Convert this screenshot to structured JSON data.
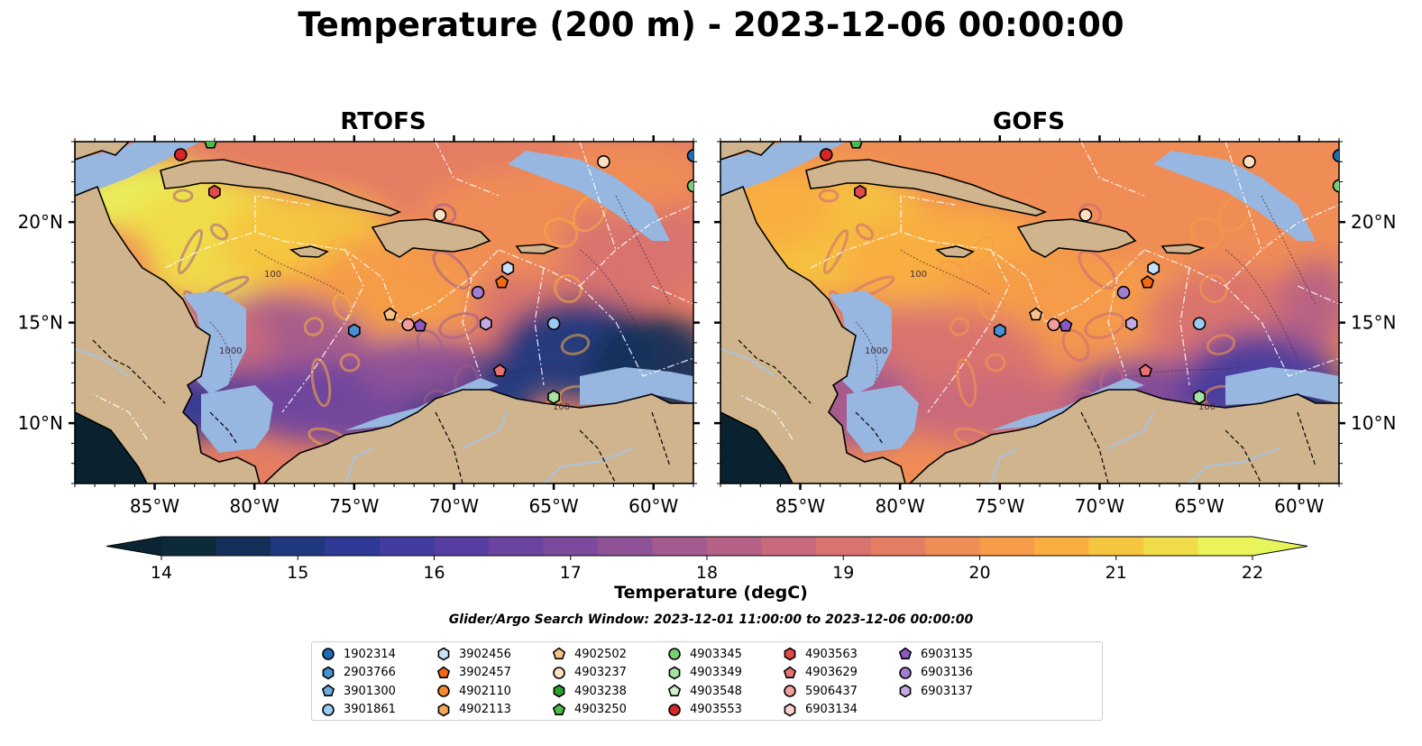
{
  "title": "Temperature (200 m) - 2023-12-06 00:00:00",
  "panels": [
    {
      "title": "RTOFS",
      "variant": "rtofs"
    },
    {
      "title": "GOFS",
      "variant": "gofs"
    }
  ],
  "map_axes": {
    "lon_ticks": [
      "85°W",
      "80°W",
      "75°W",
      "70°W",
      "65°W",
      "60°W"
    ],
    "lon_values": [
      -85,
      -80,
      -75,
      -70,
      -65,
      -60
    ],
    "lat_ticks": [
      "20°N",
      "15°N",
      "10°N"
    ],
    "lat_values": [
      20,
      15,
      10
    ],
    "lon_range": [
      -89,
      -58
    ],
    "lat_range": [
      7,
      24
    ]
  },
  "colorbar": {
    "label": "Temperature (degC)",
    "ticks": [
      "14",
      "15",
      "16",
      "17",
      "18",
      "19",
      "20",
      "21",
      "22"
    ],
    "range": [
      14,
      22
    ],
    "colors": [
      "#0d2a3b",
      "#14305a",
      "#1f3880",
      "#2f3a96",
      "#433ba0",
      "#573ea2",
      "#6b449f",
      "#7c4a9c",
      "#8f5297",
      "#a35a8f",
      "#b66186",
      "#c8697c",
      "#d87370",
      "#e57d63",
      "#f08c55",
      "#f69c48",
      "#f9ae40",
      "#f6c53f",
      "#f0dc49",
      "#eaf35a"
    ],
    "under_color": "#0b2433",
    "over_color": "#e6f55a"
  },
  "search_window": "Glider/Argo Search Window: 2023-12-01 11:00:00 to 2023-12-06 00:00:00",
  "legend": [
    {
      "id": "1902314",
      "marker": "circle",
      "color": "#1f6bb5"
    },
    {
      "id": "2903766",
      "marker": "hexagon",
      "color": "#4a8fd0"
    },
    {
      "id": "3901300",
      "marker": "pentagon",
      "color": "#6aaee0"
    },
    {
      "id": "3901861",
      "marker": "circle",
      "color": "#9ccaf0"
    },
    {
      "id": "3902456",
      "marker": "hexagon",
      "color": "#c6e2fa"
    },
    {
      "id": "3902457",
      "marker": "pentagon",
      "color": "#f26a12"
    },
    {
      "id": "4902110",
      "marker": "circle",
      "color": "#f5892c"
    },
    {
      "id": "4902113",
      "marker": "hexagon",
      "color": "#f9a557"
    },
    {
      "id": "4902502",
      "marker": "pentagon",
      "color": "#fbc38c"
    },
    {
      "id": "4903237",
      "marker": "circle",
      "color": "#fde0c2"
    },
    {
      "id": "4903238",
      "marker": "hexagon",
      "color": "#2aa02a"
    },
    {
      "id": "4903250",
      "marker": "pentagon",
      "color": "#4cbb4c"
    },
    {
      "id": "4903345",
      "marker": "circle",
      "color": "#77cf73"
    },
    {
      "id": "4903349",
      "marker": "hexagon",
      "color": "#a6e3a0"
    },
    {
      "id": "4903548",
      "marker": "pentagon",
      "color": "#d0f2cb"
    },
    {
      "id": "4903553",
      "marker": "circle",
      "color": "#d62728"
    },
    {
      "id": "4903563",
      "marker": "hexagon",
      "color": "#e2494a"
    },
    {
      "id": "4903629",
      "marker": "pentagon",
      "color": "#ea7072"
    },
    {
      "id": "5906437",
      "marker": "circle",
      "color": "#f29c9c"
    },
    {
      "id": "6903134",
      "marker": "hexagon",
      "color": "#fad0cf"
    },
    {
      "id": "6903135",
      "marker": "pentagon",
      "color": "#8a57c3"
    },
    {
      "id": "6903136",
      "marker": "circle",
      "color": "#a27ed3"
    },
    {
      "id": "6903137",
      "marker": "hexagon",
      "color": "#c3a9e6"
    }
  ],
  "floats": [
    {
      "lon": -83.7,
      "lat": 23.35,
      "marker": "circle",
      "color": "#d62728"
    },
    {
      "lon": -82.2,
      "lat": 23.95,
      "marker": "pentagon",
      "color": "#4cbb4c"
    },
    {
      "lon": -62.5,
      "lat": 23.0,
      "marker": "circle",
      "color": "#fde0c2"
    },
    {
      "lon": -58.0,
      "lat": 23.3,
      "marker": "circle",
      "color": "#1f6bb5"
    },
    {
      "lon": -58.0,
      "lat": 21.8,
      "marker": "circle",
      "color": "#77cf73"
    },
    {
      "lon": -82.0,
      "lat": 21.5,
      "marker": "hexagon",
      "color": "#e2494a"
    },
    {
      "lon": -70.7,
      "lat": 20.35,
      "marker": "circle",
      "color": "#fde0c2"
    },
    {
      "lon": -67.3,
      "lat": 17.7,
      "marker": "hexagon",
      "color": "#c6e2fa"
    },
    {
      "lon": -67.6,
      "lat": 17.0,
      "marker": "pentagon",
      "color": "#f26a12"
    },
    {
      "lon": -68.8,
      "lat": 16.5,
      "marker": "circle",
      "color": "#a27ed3"
    },
    {
      "lon": -73.2,
      "lat": 15.4,
      "marker": "pentagon",
      "color": "#fbc38c"
    },
    {
      "lon": -72.3,
      "lat": 14.9,
      "marker": "circle",
      "color": "#f29c9c"
    },
    {
      "lon": -71.7,
      "lat": 14.85,
      "marker": "pentagon",
      "color": "#8a57c3"
    },
    {
      "lon": -68.4,
      "lat": 14.95,
      "marker": "hexagon",
      "color": "#c3a9e6"
    },
    {
      "lon": -65.0,
      "lat": 14.95,
      "marker": "circle",
      "color": "#9ccaf0"
    },
    {
      "lon": -75.0,
      "lat": 14.6,
      "marker": "hexagon",
      "color": "#4a8fd0"
    },
    {
      "lon": -67.7,
      "lat": 12.6,
      "marker": "pentagon",
      "color": "#ea7072"
    },
    {
      "lon": -65.0,
      "lat": 11.3,
      "marker": "hexagon",
      "color": "#a6e3a0"
    }
  ],
  "contour_labels": [
    {
      "text": "100"
    },
    {
      "text": "1000"
    },
    {
      "text": "100"
    }
  ]
}
